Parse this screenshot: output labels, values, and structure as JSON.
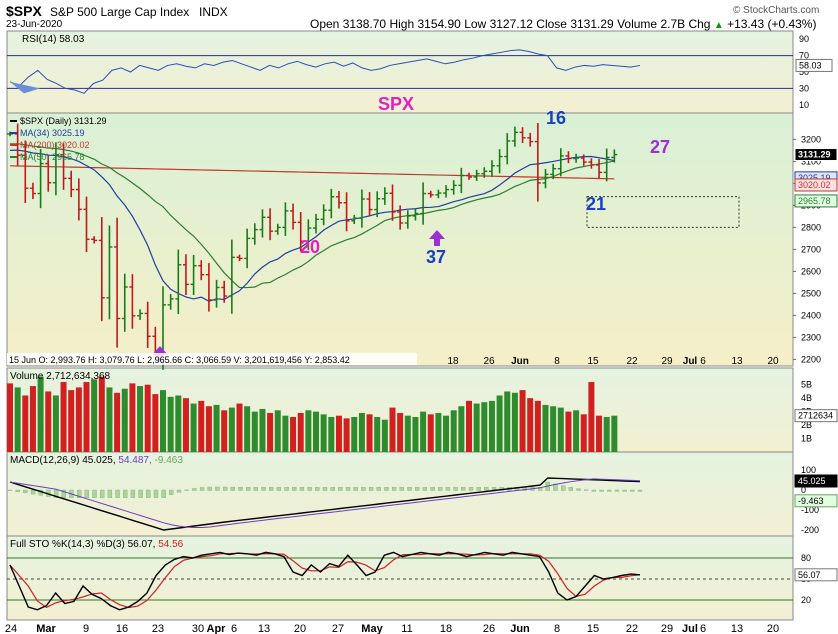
{
  "header": {
    "symbol": "$SPX",
    "name": "S&P 500 Large Cap Index",
    "exchange": "INDX",
    "date": "23-Jun-2020",
    "open_label": "Open",
    "open": "3138.70",
    "high_label": "High",
    "high": "3154.90",
    "low_label": "Low",
    "low": "3127.12",
    "close_label": "Close",
    "close": "3131.29",
    "volume_label": "Volume",
    "volume": "2.7B",
    "chg_label": "Chg",
    "chg": "+13.43 (+0.43%)",
    "chg_icon": "triangle-up-icon",
    "source": "© StockCharts.com"
  },
  "rsi": {
    "label": "RSI(14) 58.03",
    "value": 58.03,
    "value_label": "58.03",
    "ticks": [
      "90",
      "70",
      "50",
      "30",
      "10"
    ],
    "values": [
      38,
      33,
      44,
      52,
      41,
      36,
      30,
      28,
      24,
      36,
      40,
      52,
      55,
      50,
      58,
      55,
      52,
      58,
      60,
      57,
      55,
      60,
      58,
      62,
      64,
      60,
      56,
      52,
      58,
      55,
      60,
      63,
      59,
      56,
      60,
      62,
      57,
      61,
      55,
      52,
      54,
      58,
      60,
      62,
      64,
      66,
      63,
      60,
      62,
      65,
      67,
      70,
      72,
      74,
      76,
      77,
      75,
      72,
      70,
      55,
      52,
      56,
      58,
      57,
      59,
      58,
      57,
      56,
      58
    ]
  },
  "price": {
    "legend": [
      {
        "label": "$SPX (Daily) 3131.29",
        "color": "#000000"
      },
      {
        "label": "MA(34) 3025.19",
        "color": "#1f3f9f"
      },
      {
        "label": "MA(200) 3020.02",
        "color": "#c0392b"
      },
      {
        "label": "MA(50) 2965.78",
        "color": "#2e7d32"
      }
    ],
    "ticks": [
      "3200",
      "3100",
      "3000",
      "2900",
      "2800",
      "2700",
      "2600",
      "2500",
      "2400",
      "2300",
      "2200"
    ],
    "last_labels": [
      {
        "text": "3131.29",
        "value": 3131.29,
        "bg": "#000000",
        "fg": "#ffffff"
      },
      {
        "text": "3025.19",
        "value": 3025.19,
        "bg": "#e0e6ff",
        "fg": "#1f3f9f"
      },
      {
        "text": "3020.02",
        "value": 3020.02,
        "bg": "#ffe0e0",
        "fg": "#c0392b"
      },
      {
        "text": "2965.78",
        "value": 2965.78,
        "bg": "#e0ffe0",
        "fg": "#2e7d32"
      }
    ],
    "crosshair_readout": "15 Jun O: 2,993.76  H: 3,079.76  L: 2,965.66  C: 3,066.59  V: 3,201,619,456  Y: 2,853.42",
    "annotations": [
      {
        "text": "SPX",
        "color": "#e020c0",
        "size": 18
      },
      {
        "text": "16",
        "color": "#1a3fbf",
        "size": 18
      },
      {
        "text": "27",
        "color": "#9b30d9",
        "size": 18
      },
      {
        "text": "21",
        "color": "#1a3fbf",
        "size": 18
      },
      {
        "text": "20",
        "color": "#e020c0",
        "size": 18
      },
      {
        "text": "37",
        "color": "#1a3fbf",
        "size": 18
      }
    ],
    "arrow_icons": [
      "arrow-up-icon",
      "arrow-up-icon"
    ],
    "arrow_color": "#9b30d9",
    "box_range": [
      2800,
      2940
    ]
  },
  "volume": {
    "label": "Volume 2,712,634,368",
    "value_label": "2712634",
    "ticks": [
      "5B",
      "4B",
      "3B",
      "2B",
      "1B"
    ]
  },
  "macd": {
    "label": "MACD(12,26,9) 45.025, 54.487, -9.463",
    "label_a": "MACD(12,26,9) 45.025,",
    "label_b": "54.487,",
    "label_c": "-9.463",
    "value_labels": [
      "45.025",
      "-9.463"
    ],
    "ticks": [
      "100",
      "0",
      "-100",
      "-200"
    ]
  },
  "sto": {
    "label": "Full STO %K(14,3) %D(3) 56.07, 54.56",
    "label_a": "Full STO %K(14,3) %D(3) 56.07,",
    "label_b": "54.56",
    "value_label": "56.07",
    "ticks": [
      "80",
      "50",
      "20"
    ]
  },
  "x_axis": {
    "mid_ticks": [
      "18",
      "26",
      "Jun",
      "8",
      "15",
      "22",
      "29",
      "Jul",
      "6",
      "13",
      "20"
    ],
    "bottom_ticks": [
      "24",
      "Mar",
      "9",
      "16",
      "23",
      "30",
      "Apr",
      "6",
      "13",
      "20",
      "27",
      "May",
      "11",
      "18",
      "26",
      "Jun",
      "8",
      "15",
      "22",
      "29",
      "Jul",
      "6",
      "13",
      "20"
    ]
  },
  "chart_data": {
    "type": "ohlc",
    "title": "$SPX S&P 500 Large Cap Index INDX",
    "date_range": [
      "2020-02-24",
      "2020-06-23"
    ],
    "ylim": [
      2170,
      3320
    ],
    "closes": [
      3225,
      3128,
      2978,
      2954,
      3090,
      3003,
      3130,
      3023,
      2972,
      2882,
      2746,
      2741,
      2480,
      2711,
      2386,
      2529,
      2398,
      2409,
      2305,
      2237,
      2448,
      2475,
      2630,
      2541,
      2626,
      2585,
      2470,
      2527,
      2488,
      2664,
      2659,
      2750,
      2790,
      2846,
      2783,
      2800,
      2875,
      2823,
      2737,
      2797,
      2837,
      2878,
      2939,
      2912,
      2830,
      2842,
      2929,
      2881,
      2930,
      2955,
      2870,
      2820,
      2852,
      2863,
      2954,
      2948,
      2956,
      2972,
      2991,
      3036,
      3029,
      3044,
      3055,
      3080,
      3122,
      3193,
      3232,
      3207,
      3190,
      3002,
      3041,
      3067,
      3125,
      3113,
      3115,
      3097,
      3084,
      3050,
      3118,
      3131
    ],
    "ma_values": {
      "MA(34)": 3025.19,
      "MA(200)": 3020.02,
      "MA(50)": 2965.78
    },
    "volume_bars": [
      5.1,
      4.8,
      4.2,
      4.9,
      5.6,
      4.5,
      4.2,
      5.2,
      4.6,
      4.8,
      5.2,
      5.4,
      5.6,
      4.8,
      4.4,
      4.7,
      5.1,
      4.9,
      5.0,
      4.3,
      4.6,
      4.1,
      4.2,
      4.0,
      3.6,
      3.8,
      3.4,
      3.5,
      3.1,
      3.3,
      3.6,
      3.4,
      3.0,
      3.2,
      2.9,
      3.1,
      2.7,
      2.6,
      2.9,
      3.1,
      3.0,
      2.8,
      2.6,
      2.7,
      2.5,
      2.6,
      2.9,
      2.8,
      2.6,
      2.4,
      3.3,
      2.9,
      2.7,
      2.6,
      3.0,
      2.8,
      2.9,
      2.7,
      3.1,
      3.4,
      3.8,
      3.6,
      3.7,
      3.8,
      4.2,
      4.5,
      4.4,
      4.6,
      4.0,
      3.8,
      3.5,
      3.4,
      3.3,
      3.0,
      3.1,
      2.8,
      5.2,
      2.7,
      2.6,
      2.7
    ],
    "volume_up": [
      0,
      1,
      0,
      0,
      1,
      0,
      1,
      0,
      0,
      0,
      0,
      1,
      0,
      1,
      0,
      1,
      0,
      1,
      0,
      0,
      1,
      1,
      1,
      0,
      1,
      0,
      0,
      1,
      0,
      1,
      0,
      1,
      1,
      1,
      0,
      1,
      1,
      0,
      0,
      1,
      1,
      1,
      1,
      0,
      0,
      1,
      1,
      0,
      1,
      1,
      0,
      0,
      1,
      1,
      1,
      0,
      1,
      1,
      1,
      1,
      0,
      1,
      1,
      1,
      1,
      1,
      1,
      0,
      0,
      0,
      1,
      1,
      1,
      0,
      1,
      0,
      0,
      0,
      1,
      1
    ],
    "macd": {
      "macd": 45.025,
      "signal": 54.487,
      "histogram": -9.463
    },
    "full_sto": {
      "k": 56.07,
      "d": 54.56
    },
    "rsi14": 58.03
  }
}
